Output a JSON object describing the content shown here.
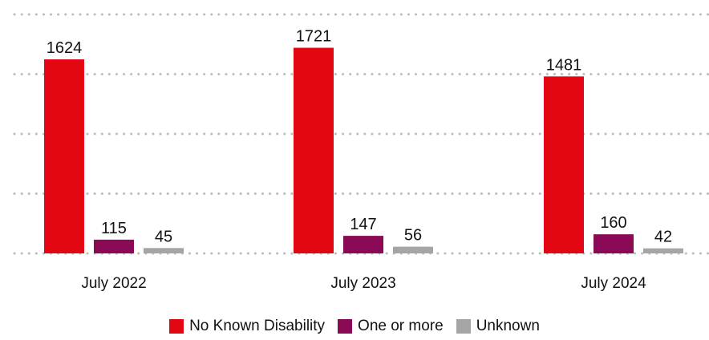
{
  "chart_data": {
    "type": "bar",
    "title": "",
    "xlabel": "",
    "ylabel": "",
    "categories": [
      "July 2022",
      "July 2023",
      "July 2024"
    ],
    "series": [
      {
        "name": "No Known Disability",
        "color": "#e30613",
        "values": [
          1624,
          1721,
          1481
        ]
      },
      {
        "name": "One or more",
        "color": "#8a0a55",
        "values": [
          115,
          147,
          160
        ]
      },
      {
        "name": "Unknown",
        "color": "#a5a5a5",
        "values": [
          45,
          56,
          42
        ]
      }
    ],
    "ylim": [
      0,
      2000
    ],
    "gridlines": [
      0,
      500,
      1000,
      1500,
      2000
    ],
    "grid": true,
    "legend_position": "bottom"
  }
}
